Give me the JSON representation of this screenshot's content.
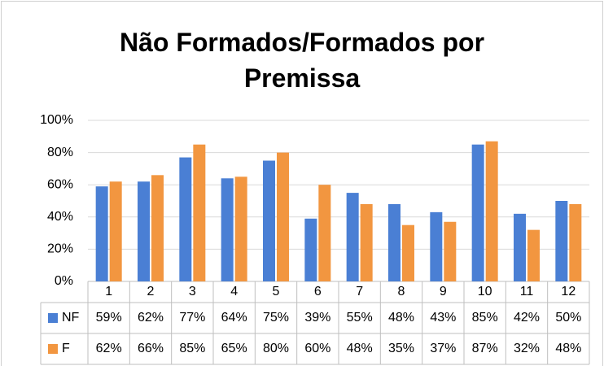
{
  "chart_data": {
    "type": "bar",
    "title": "Não Formados/Formados por Premissa",
    "categories": [
      "1",
      "2",
      "3",
      "4",
      "5",
      "6",
      "7",
      "8",
      "9",
      "10",
      "11",
      "12"
    ],
    "series": [
      {
        "name": "NF",
        "color": "#4a7fd4",
        "values": [
          59,
          62,
          77,
          64,
          75,
          39,
          55,
          48,
          43,
          85,
          42,
          50
        ],
        "value_labels": [
          "59%",
          "62%",
          "77%",
          "64%",
          "75%",
          "39%",
          "55%",
          "48%",
          "43%",
          "85%",
          "42%",
          "50%"
        ]
      },
      {
        "name": "F",
        "color": "#f29640",
        "values": [
          62,
          66,
          85,
          65,
          80,
          60,
          48,
          35,
          37,
          87,
          32,
          48
        ],
        "value_labels": [
          "62%",
          "66%",
          "85%",
          "65%",
          "80%",
          "60%",
          "48%",
          "35%",
          "37%",
          "87%",
          "32%",
          "48%"
        ]
      }
    ],
    "ylim": [
      0,
      100
    ],
    "yticks": [
      {
        "value": 0,
        "label": "0%"
      },
      {
        "value": 20,
        "label": "20%"
      },
      {
        "value": 40,
        "label": "40%"
      },
      {
        "value": 60,
        "label": "60%"
      },
      {
        "value": 80,
        "label": "80%"
      },
      {
        "value": 100,
        "label": "100%"
      }
    ],
    "grid": true
  }
}
